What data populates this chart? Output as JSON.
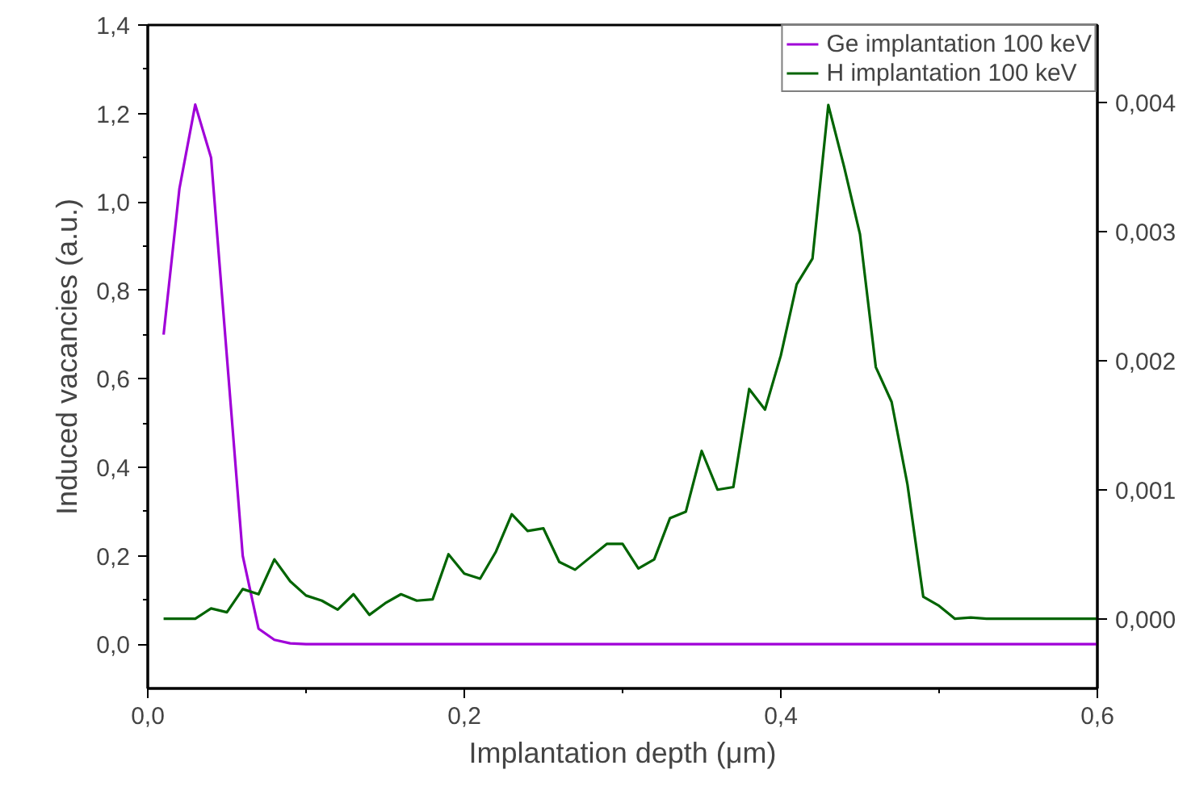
{
  "chart_data": {
    "type": "line",
    "xlabel": "Implantation depth (μm)",
    "ylabel": "Induced vacancies (a.u.)",
    "xlim": [
      0,
      0.6
    ],
    "ylim": [
      -0.1,
      1.4
    ],
    "y2lim": [
      -0.00054,
      0.0046
    ],
    "xticks": [
      {
        "value": 0,
        "label": "0,0"
      },
      {
        "value": 0.2,
        "label": "0,2"
      },
      {
        "value": 0.4,
        "label": "0,4"
      },
      {
        "value": 0.6,
        "label": "0,6"
      }
    ],
    "yticks": [
      {
        "value": 0,
        "label": "0,0"
      },
      {
        "value": 0.2,
        "label": "0,2"
      },
      {
        "value": 0.4,
        "label": "0,4"
      },
      {
        "value": 0.6,
        "label": "0,6"
      },
      {
        "value": 0.8,
        "label": "0,8"
      },
      {
        "value": 1.0,
        "label": "1,0"
      },
      {
        "value": 1.2,
        "label": "1,2"
      },
      {
        "value": 1.4,
        "label": "1,4"
      }
    ],
    "y2ticks": [
      {
        "value": 0,
        "label": "0,000"
      },
      {
        "value": 0.001,
        "label": "0,001"
      },
      {
        "value": 0.002,
        "label": "0,002"
      },
      {
        "value": 0.003,
        "label": "0,003"
      },
      {
        "value": 0.004,
        "label": "0,004"
      }
    ],
    "grid": false,
    "legend": "top right",
    "marker": "none",
    "line_style": "solid",
    "series": [
      {
        "name": "Ge implantation 100 keV",
        "color": "#a000d8",
        "x": [
          0.01,
          0.02,
          0.03,
          0.04,
          0.05,
          0.06,
          0.07,
          0.08,
          0.09,
          0.1,
          0.11,
          0.12,
          0.13,
          0.14,
          0.15,
          0.16,
          0.17,
          0.18,
          0.19,
          0.2,
          0.21,
          0.22,
          0.23,
          0.24,
          0.25,
          0.26,
          0.27,
          0.28,
          0.29,
          0.3,
          0.31,
          0.32,
          0.33,
          0.34,
          0.35,
          0.36,
          0.37,
          0.38,
          0.39,
          0.4,
          0.41,
          0.42,
          0.43,
          0.44,
          0.45,
          0.46,
          0.47,
          0.48,
          0.49,
          0.5,
          0.51,
          0.52,
          0.53,
          0.54,
          0.55,
          0.56,
          0.57,
          0.58,
          0.59,
          0.6
        ],
        "values": [
          0.7,
          1.03,
          1.22,
          1.1,
          0.65,
          0.2,
          0.035,
          0.01,
          0.002,
          0,
          0,
          0,
          0,
          0,
          0,
          0,
          0,
          0,
          0,
          0,
          0,
          0,
          0,
          0,
          0,
          0,
          0,
          0,
          0,
          0,
          0,
          0,
          0,
          0,
          0,
          0,
          0,
          0,
          0,
          0,
          0,
          0,
          0,
          0,
          0,
          0,
          0,
          0,
          0,
          0,
          0,
          0,
          0,
          0,
          0,
          0,
          0,
          0,
          0,
          0
        ]
      },
      {
        "name": "H implantation 100 keV",
        "color": "#006400",
        "axis": "y2",
        "x": [
          0.01,
          0.02,
          0.03,
          0.04,
          0.05,
          0.06,
          0.07,
          0.08,
          0.09,
          0.1,
          0.11,
          0.12,
          0.13,
          0.14,
          0.15,
          0.16,
          0.17,
          0.18,
          0.19,
          0.2,
          0.21,
          0.22,
          0.23,
          0.24,
          0.25,
          0.26,
          0.27,
          0.28,
          0.29,
          0.3,
          0.31,
          0.32,
          0.33,
          0.34,
          0.35,
          0.36,
          0.37,
          0.38,
          0.39,
          0.4,
          0.41,
          0.42,
          0.43,
          0.44,
          0.45,
          0.46,
          0.47,
          0.48,
          0.49,
          0.5,
          0.51,
          0.52,
          0.53,
          0.54,
          0.55,
          0.56,
          0.57,
          0.58,
          0.59,
          0.6
        ],
        "values": [
          0.0,
          0.0,
          0.0,
          8e-05,
          5e-05,
          0.00023,
          0.00019,
          0.00046,
          0.00029,
          0.00018,
          0.00014,
          7e-05,
          0.00019,
          3e-05,
          0.00012,
          0.00019,
          0.00014,
          0.00015,
          0.0005,
          0.00035,
          0.00031,
          0.00052,
          0.00081,
          0.00068,
          0.0007,
          0.00044,
          0.00038,
          0.00048,
          0.00058,
          0.00058,
          0.00039,
          0.00046,
          0.00078,
          0.00083,
          0.0013,
          0.001,
          0.00102,
          0.00178,
          0.00162,
          0.00204,
          0.00259,
          0.00279,
          0.00398,
          0.0035,
          0.00298,
          0.00195,
          0.00168,
          0.00104,
          0.00017,
          0.0001,
          0.0,
          1e-05,
          0.0,
          0.0,
          0.0,
          0.0,
          0.0,
          0.0,
          0.0,
          0.0
        ]
      }
    ]
  }
}
